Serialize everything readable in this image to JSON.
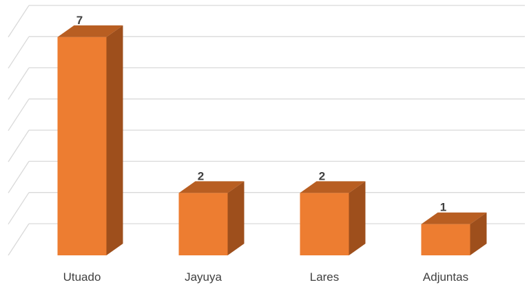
{
  "chart_data": {
    "type": "bar",
    "style": "3d-column",
    "categories": [
      "Utuado",
      "Jayuya",
      "Lares",
      "Adjuntas"
    ],
    "values": [
      7,
      2,
      2,
      1
    ],
    "data_labels": [
      "7",
      "2",
      "2",
      "1"
    ],
    "ylim": [
      0,
      7
    ],
    "y_gridline_step": 1,
    "grid": true,
    "legend": "none",
    "colors": {
      "bar_front": "#ED7D31",
      "bar_top": "#B85E22",
      "bar_side": "#9E4F1C",
      "gridline": "#D9D9D9",
      "text": "#404040"
    }
  }
}
